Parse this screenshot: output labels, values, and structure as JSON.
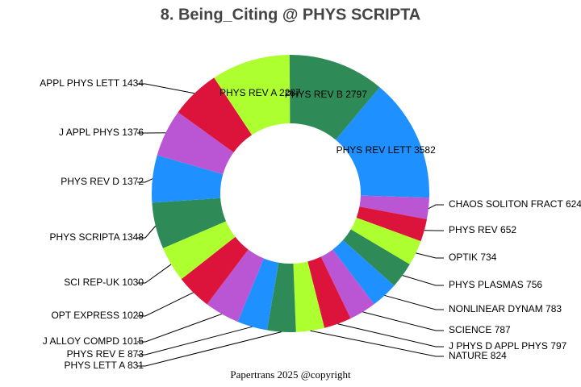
{
  "chart_data": {
    "type": "donut",
    "title": "8. Being_Citing @ PHYS SCRIPTA",
    "categories": [
      "PHYS REV LETT",
      "CHAOS SOLITON FRACT",
      "PHYS REV",
      "OPTIK",
      "PHYS PLASMAS",
      "NONLINEAR DYNAM",
      "SCIENCE",
      "J PHYS D APPL PHYS",
      "NATURE",
      "PHYS LETT A",
      "PHYS REV E",
      "J ALLOY COMPD",
      "OPT EXPRESS",
      "SCI REP-UK",
      "PHYS SCRIPTA",
      "PHYS REV D",
      "J APPL PHYS",
      "APPL PHYS LETT",
      "PHYS REV A",
      "PHYS REV B"
    ],
    "values": [
      3582,
      624,
      652,
      734,
      756,
      783,
      787,
      797,
      824,
      831,
      873,
      1015,
      1029,
      1030,
      1348,
      1372,
      1376,
      1434,
      2287,
      2797
    ],
    "colors": [
      "#1e90ff",
      "#ba55d3",
      "#dc143c",
      "#adff2f",
      "#2e8b57"
    ],
    "footer": "Papertrans 2025 @copyright"
  }
}
